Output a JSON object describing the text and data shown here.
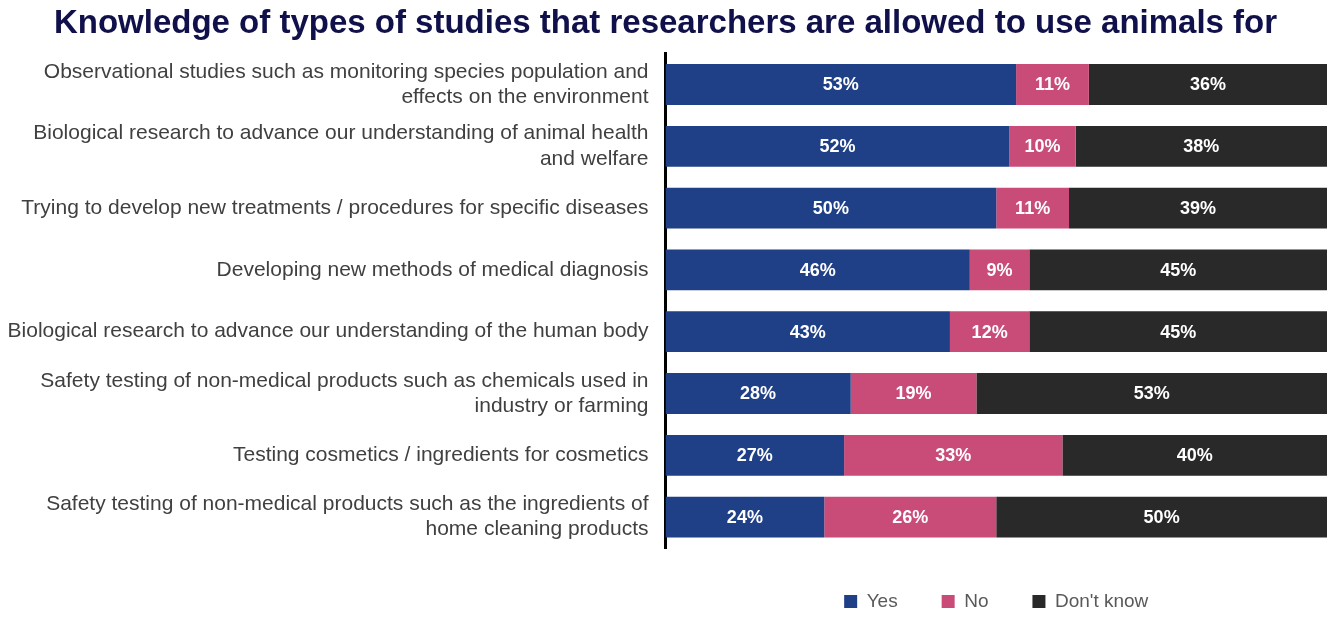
{
  "chart_data": {
    "type": "bar",
    "orientation": "horizontal",
    "stacked": true,
    "title": "Knowledge of types of studies that researchers are allowed to use animals for",
    "categories": [
      "Observational studies such as monitoring species population and effects on the environment",
      "Biological research to advance our understanding of animal health and welfare",
      "Trying to develop new treatments / procedures for specific diseases",
      "Developing new methods of medical diagnosis",
      "Biological research to advance our understanding of the human body",
      "Safety testing of non-medical products such as chemicals used in industry or farming",
      "Testing cosmetics / ingredients for cosmetics",
      "Safety testing of non-medical products such as the ingredients of home cleaning products"
    ],
    "series": [
      {
        "name": "Yes",
        "color": "#1f3f87",
        "values": [
          53,
          52,
          50,
          46,
          43,
          28,
          27,
          24
        ],
        "value_labels": [
          "53%",
          "52%",
          "50%",
          "46%",
          "43%",
          "28%",
          "27%",
          "24%"
        ]
      },
      {
        "name": "No",
        "color": "#c94c78",
        "values": [
          11,
          10,
          11,
          9,
          12,
          19,
          33,
          26
        ],
        "value_labels": [
          "11%",
          "10%",
          "11%",
          "9%",
          "12%",
          "19%",
          "33%",
          "26%"
        ]
      },
      {
        "name": "Don't know",
        "color": "#292929",
        "values": [
          36,
          38,
          39,
          45,
          45,
          53,
          40,
          50
        ],
        "value_labels": [
          "36%",
          "38%",
          "39%",
          "45%",
          "45%",
          "53%",
          "40%",
          "50%"
        ]
      }
    ],
    "tick_labels": "y",
    "grid": false,
    "legend": "bottom"
  }
}
